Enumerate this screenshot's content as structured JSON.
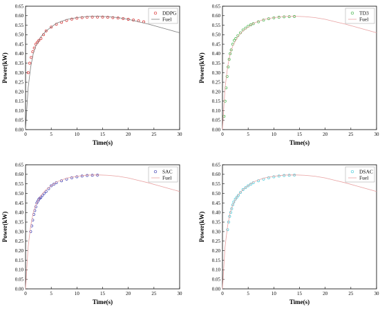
{
  "chart_data": [
    {
      "type": "scatter",
      "xlabel": "Time(s)",
      "ylabel": "Power(kW)",
      "xlim": [
        0,
        30
      ],
      "ylim": [
        0.0,
        0.65
      ],
      "xticks": [
        "0",
        "5",
        "10",
        "15",
        "20",
        "25",
        "30"
      ],
      "yticks": [
        "0.00",
        "0.05",
        "0.10",
        "0.15",
        "0.20",
        "0.25",
        "0.30",
        "0.35",
        "0.40",
        "0.45",
        "0.50",
        "0.55",
        "0.60",
        "0.65"
      ],
      "legend_position": "top-right",
      "series": [
        {
          "name": "DDPG",
          "kind": "markers",
          "color": "#d62728",
          "x": [
            0.5,
            0.8,
            1.1,
            1.4,
            1.7,
            2.0,
            2.3,
            2.6,
            3.0,
            3.5,
            4.0,
            5.0,
            6.0,
            7.0,
            8.0,
            9.0,
            10.0,
            11.0,
            12.0,
            13.0,
            14.0,
            15.0,
            16.0,
            17.0,
            18.0,
            19.0,
            20.0,
            21.0,
            22.0,
            23.0
          ],
          "y": [
            0.3,
            0.35,
            0.38,
            0.41,
            0.43,
            0.45,
            0.46,
            0.47,
            0.48,
            0.5,
            0.52,
            0.54,
            0.555,
            0.565,
            0.575,
            0.582,
            0.587,
            0.59,
            0.592,
            0.593,
            0.593,
            0.593,
            0.592,
            0.59,
            0.588,
            0.585,
            0.581,
            0.577,
            0.573,
            0.568
          ]
        },
        {
          "name": "Fuel",
          "kind": "line",
          "color": "#7a7a7a",
          "x": [
            0,
            0.5,
            1,
            1.5,
            2,
            3,
            4,
            5,
            6,
            8,
            10,
            12,
            14,
            16,
            18,
            20,
            22,
            24,
            26,
            28,
            30
          ],
          "y": [
            0.0,
            0.22,
            0.33,
            0.4,
            0.44,
            0.49,
            0.52,
            0.54,
            0.56,
            0.58,
            0.59,
            0.596,
            0.597,
            0.595,
            0.59,
            0.581,
            0.568,
            0.555,
            0.54,
            0.525,
            0.51
          ]
        }
      ]
    },
    {
      "type": "scatter",
      "xlabel": "Time(s)",
      "ylabel": "Power(kW)",
      "xlim": [
        0,
        30
      ],
      "ylim": [
        0.0,
        0.65
      ],
      "xticks": [
        "0",
        "5",
        "10",
        "15",
        "20",
        "25",
        "30"
      ],
      "yticks": [
        "0.00",
        "0.05",
        "0.10",
        "0.15",
        "0.20",
        "0.25",
        "0.30",
        "0.35",
        "0.40",
        "0.45",
        "0.50",
        "0.55",
        "0.60",
        "0.65"
      ],
      "legend_position": "top-right",
      "series": [
        {
          "name": "TD3",
          "kind": "markers",
          "color": "#3cb043",
          "x": [
            0.3,
            0.5,
            0.7,
            0.9,
            1.1,
            1.3,
            1.5,
            1.7,
            2.0,
            2.3,
            2.6,
            3.0,
            3.5,
            4.0,
            4.5,
            5.0,
            5.5,
            6.0,
            7.0,
            8.0,
            9.0,
            10.0,
            11.0,
            12.0,
            13.0,
            14.0
          ],
          "y": [
            0.07,
            0.15,
            0.22,
            0.28,
            0.33,
            0.37,
            0.4,
            0.42,
            0.45,
            0.47,
            0.48,
            0.495,
            0.51,
            0.525,
            0.535,
            0.545,
            0.552,
            0.558,
            0.568,
            0.577,
            0.584,
            0.589,
            0.592,
            0.594,
            0.595,
            0.596
          ]
        },
        {
          "name": "Fuel",
          "kind": "line",
          "color": "#e8a0a0",
          "x": [
            0,
            0.5,
            1,
            1.5,
            2,
            3,
            4,
            5,
            6,
            8,
            10,
            12,
            14,
            16,
            18,
            20,
            22,
            24,
            26,
            28,
            30
          ],
          "y": [
            0.0,
            0.22,
            0.33,
            0.4,
            0.44,
            0.49,
            0.52,
            0.54,
            0.56,
            0.58,
            0.59,
            0.596,
            0.597,
            0.595,
            0.59,
            0.581,
            0.568,
            0.555,
            0.54,
            0.525,
            0.51
          ]
        }
      ]
    },
    {
      "type": "scatter",
      "xlabel": "Time(s)",
      "ylabel": "Power(kW)",
      "xlim": [
        0,
        30
      ],
      "ylim": [
        0.0,
        0.65
      ],
      "xticks": [
        "0",
        "5",
        "10",
        "15",
        "20",
        "25",
        "30"
      ],
      "yticks": [
        "0.00",
        "0.05",
        "0.10",
        "0.15",
        "0.20",
        "0.25",
        "0.30",
        "0.35",
        "0.40",
        "0.45",
        "0.50",
        "0.55",
        "0.60",
        "0.65"
      ],
      "legend_position": "top-right",
      "series": [
        {
          "name": "SAC",
          "kind": "markers",
          "color": "#3b3bb0",
          "x": [
            1.0,
            1.2,
            1.4,
            1.6,
            1.8,
            2.0,
            2.2,
            2.4,
            2.6,
            2.8,
            3.0,
            3.3,
            3.6,
            4.0,
            4.5,
            5.0,
            5.5,
            6.0,
            7.0,
            8.0,
            9.0,
            10.0,
            11.0,
            12.0,
            13.0,
            14.0
          ],
          "y": [
            0.3,
            0.33,
            0.36,
            0.39,
            0.41,
            0.43,
            0.45,
            0.46,
            0.47,
            0.475,
            0.48,
            0.49,
            0.5,
            0.51,
            0.525,
            0.54,
            0.548,
            0.556,
            0.566,
            0.575,
            0.582,
            0.587,
            0.591,
            0.594,
            0.595,
            0.596
          ]
        },
        {
          "name": "Fuel",
          "kind": "line",
          "color": "#e8a0a0",
          "x": [
            0,
            0.5,
            1,
            1.5,
            2,
            3,
            4,
            5,
            6,
            8,
            10,
            12,
            14,
            16,
            18,
            20,
            22,
            24,
            26,
            28,
            30
          ],
          "y": [
            0.0,
            0.22,
            0.33,
            0.4,
            0.44,
            0.49,
            0.52,
            0.54,
            0.56,
            0.58,
            0.59,
            0.596,
            0.597,
            0.595,
            0.59,
            0.581,
            0.568,
            0.555,
            0.54,
            0.525,
            0.51
          ]
        }
      ]
    },
    {
      "type": "scatter",
      "xlabel": "Time(s)",
      "ylabel": "Power(kW)",
      "xlim": [
        0,
        30
      ],
      "ylim": [
        0.0,
        0.65
      ],
      "xticks": [
        "0",
        "5",
        "10",
        "15",
        "20",
        "25",
        "30"
      ],
      "yticks": [
        "0.00",
        "0.05",
        "0.10",
        "0.15",
        "0.20",
        "0.25",
        "0.30",
        "0.35",
        "0.40",
        "0.45",
        "0.50",
        "0.55",
        "0.60",
        "0.65"
      ],
      "legend_position": "top-right",
      "series": [
        {
          "name": "DSAC",
          "kind": "markers",
          "color": "#40c8d8",
          "x": [
            1.0,
            1.2,
            1.4,
            1.6,
            1.8,
            2.0,
            2.2,
            2.5,
            2.8,
            3.1,
            3.5,
            4.0,
            4.5,
            5.0,
            5.5,
            6.0,
            7.0,
            8.0,
            9.0,
            10.0,
            11.0,
            12.0,
            13.0,
            14.0
          ],
          "y": [
            0.31,
            0.35,
            0.38,
            0.4,
            0.42,
            0.44,
            0.455,
            0.47,
            0.48,
            0.49,
            0.505,
            0.52,
            0.53,
            0.54,
            0.548,
            0.556,
            0.566,
            0.575,
            0.582,
            0.587,
            0.591,
            0.594,
            0.595,
            0.596
          ]
        },
        {
          "name": "Fuel",
          "kind": "line",
          "color": "#e8a0a0",
          "x": [
            0,
            0.5,
            1,
            1.5,
            2,
            3,
            4,
            5,
            6,
            8,
            10,
            12,
            14,
            16,
            18,
            20,
            22,
            24,
            26,
            28,
            30
          ],
          "y": [
            0.0,
            0.22,
            0.33,
            0.4,
            0.44,
            0.49,
            0.52,
            0.54,
            0.56,
            0.58,
            0.59,
            0.596,
            0.597,
            0.595,
            0.59,
            0.581,
            0.568,
            0.555,
            0.54,
            0.525,
            0.51
          ]
        }
      ]
    }
  ]
}
